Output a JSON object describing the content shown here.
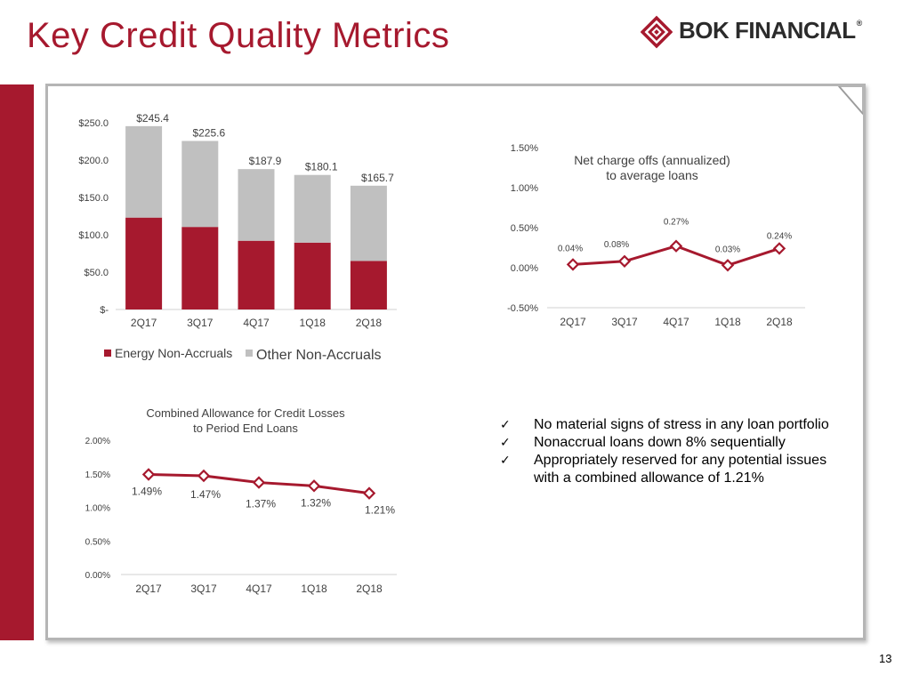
{
  "slide": {
    "title": "Key Credit Quality Metrics",
    "page_number": "13",
    "colors": {
      "brand_red": "#a6192e",
      "gray_bar": "#c0c0c0",
      "axis": "#d0d0d0",
      "text": "#404040"
    }
  },
  "logo": {
    "text": "BOK FINANCIAL",
    "registered": "®",
    "icon": "bok-diamond-logo-icon"
  },
  "bullets": {
    "check_icon": "✓",
    "items": [
      "No material signs of stress in any loan portfolio",
      "Nonaccrual loans down 8% sequentially",
      "Appropriately reserved for any potential issues with a combined allowance of 1.21%"
    ]
  },
  "chart_data": [
    {
      "id": "nonaccruals",
      "type": "bar",
      "stacked": true,
      "title": "",
      "categories": [
        "2Q17",
        "3Q17",
        "4Q17",
        "1Q18",
        "2Q18"
      ],
      "series": [
        {
          "name": "Energy Non-Accruals",
          "color": "#a6192e",
          "values": [
            123.0,
            110.5,
            92.0,
            89.5,
            65.0
          ]
        },
        {
          "name": "Other Non-Accruals",
          "color": "#c0c0c0",
          "values": [
            122.4,
            115.1,
            95.9,
            90.6,
            100.7
          ]
        }
      ],
      "totals": [
        245.4,
        225.6,
        187.9,
        180.1,
        165.7
      ],
      "total_labels": [
        "$245.4",
        "$225.6",
        "$187.9",
        "$180.1",
        "$165.7"
      ],
      "yticks": [
        0,
        50,
        100,
        150,
        200,
        250
      ],
      "ytick_labels": [
        "$-",
        "$50.0",
        "$100.0",
        "$150.0",
        "$200.0",
        "$250.0"
      ],
      "ylim": [
        0,
        250
      ],
      "legend_position": "bottom-left"
    },
    {
      "id": "net-charge-offs",
      "type": "line",
      "title": "Net charge offs (annualized) to average loans",
      "title_lines": [
        "Net charge offs (annualized)",
        "to average loans"
      ],
      "categories": [
        "2Q17",
        "3Q17",
        "4Q17",
        "1Q18",
        "2Q18"
      ],
      "series": [
        {
          "name": "Net charge offs",
          "color": "#a6192e",
          "values": [
            0.04,
            0.08,
            0.27,
            0.03,
            0.24
          ]
        }
      ],
      "point_labels": [
        "0.04%",
        "0.08%",
        "0.27%",
        "0.03%",
        "0.24%"
      ],
      "yticks": [
        -0.5,
        0.0,
        0.5,
        1.0,
        1.5
      ],
      "ytick_labels": [
        "-0.50%",
        "0.00%",
        "0.50%",
        "1.00%",
        "1.50%"
      ],
      "ylim": [
        -0.5,
        1.5
      ]
    },
    {
      "id": "combined-allowance",
      "type": "line",
      "title": "Combined Allowance for Credit Losses to Period End Loans",
      "title_lines": [
        "Combined Allowance for Credit Losses",
        "to Period End Loans"
      ],
      "categories": [
        "2Q17",
        "3Q17",
        "4Q17",
        "1Q18",
        "2Q18"
      ],
      "series": [
        {
          "name": "Combined Allowance",
          "color": "#a6192e",
          "values": [
            1.49,
            1.47,
            1.37,
            1.32,
            1.21
          ]
        }
      ],
      "point_labels": [
        "1.49%",
        "1.47%",
        "1.37%",
        "1.32%",
        "1.21%"
      ],
      "yticks": [
        0.0,
        0.5,
        1.0,
        1.5,
        2.0
      ],
      "ytick_labels": [
        "0.00%",
        "0.50%",
        "1.00%",
        "1.50%",
        "2.00%"
      ],
      "ylim": [
        0,
        2.0
      ]
    }
  ]
}
